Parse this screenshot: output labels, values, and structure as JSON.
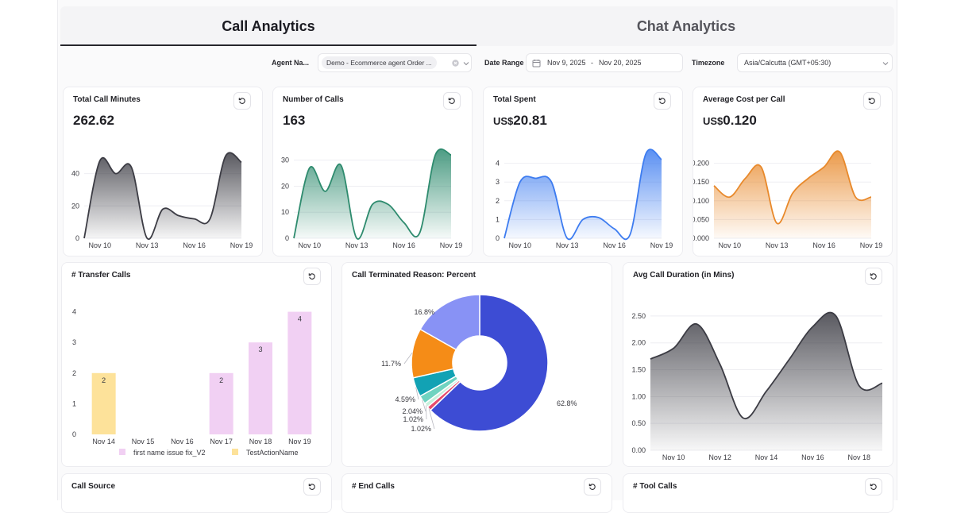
{
  "tabs": [
    {
      "label": "Call Analytics",
      "active": true
    },
    {
      "label": "Chat Analytics",
      "active": false
    }
  ],
  "filters": {
    "agent_label": "Agent Na...",
    "agent_value": "Demo - Ecommerce agent Order ...",
    "date_label": "Date Range",
    "date_start": "Nov 9, 2025",
    "date_sep": "-",
    "date_end": "Nov 20, 2025",
    "timezone_label": "Timezone",
    "timezone_value": "Asia/Calcutta (GMT+05:30)"
  },
  "kpis": [
    {
      "title": "Total Call Minutes",
      "currency": "",
      "value": "262.62",
      "color": "#3c3c44"
    },
    {
      "title": "Number of Calls",
      "currency": "",
      "value": "163",
      "color": "#2e8b6e"
    },
    {
      "title": "Total Spent",
      "currency": "US$",
      "value": "20.81",
      "color": "#3d7cf0"
    },
    {
      "title": "Average Cost per Call",
      "currency": "US$",
      "value": "0.120",
      "color": "#e8892b"
    }
  ],
  "chart_data": [
    {
      "type": "area",
      "title": "Total Call Minutes",
      "x": [
        "Nov 9",
        "Nov 10",
        "Nov 11",
        "Nov 12",
        "Nov 13",
        "Nov 14",
        "Nov 15",
        "Nov 16",
        "Nov 17",
        "Nov 18",
        "Nov 19"
      ],
      "values": [
        0,
        48,
        40,
        44,
        0,
        18,
        14,
        12,
        12,
        51,
        47
      ],
      "xticks": [
        "Nov 10",
        "Nov 13",
        "Nov 16",
        "Nov 19"
      ],
      "yticks": [
        "0",
        "20",
        "40"
      ],
      "ylim": [
        0,
        58
      ]
    },
    {
      "type": "area",
      "title": "Number of Calls",
      "x": [
        "Nov 9",
        "Nov 10",
        "Nov 11",
        "Nov 12",
        "Nov 13",
        "Nov 14",
        "Nov 15",
        "Nov 16",
        "Nov 17",
        "Nov 18",
        "Nov 19"
      ],
      "values": [
        0,
        27,
        18,
        28,
        0,
        13,
        13,
        6,
        2,
        32,
        32
      ],
      "xticks": [
        "Nov 10",
        "Nov 13",
        "Nov 16",
        "Nov 19"
      ],
      "yticks": [
        "0",
        "10",
        "20",
        "30"
      ],
      "ylim": [
        0,
        36
      ]
    },
    {
      "type": "area",
      "title": "Total Spent",
      "x": [
        "Nov 9",
        "Nov 10",
        "Nov 11",
        "Nov 12",
        "Nov 13",
        "Nov 14",
        "Nov 15",
        "Nov 16",
        "Nov 17",
        "Nov 18",
        "Nov 19"
      ],
      "values": [
        0,
        3.0,
        3.2,
        3.0,
        0,
        1,
        1.1,
        0.5,
        0.2,
        4.5,
        4.2
      ],
      "xticks": [
        "Nov 10",
        "Nov 13",
        "Nov 16",
        "Nov 19"
      ],
      "yticks": [
        "0",
        "1",
        "2",
        "3",
        "4"
      ],
      "ylim": [
        0,
        5
      ]
    },
    {
      "type": "area",
      "title": "Average Cost per Call",
      "x": [
        "Nov 9",
        "Nov 10",
        "Nov 11",
        "Nov 12",
        "Nov 13",
        "Nov 14",
        "Nov 15",
        "Nov 16",
        "Nov 17",
        "Nov 18",
        "Nov 19"
      ],
      "values": [
        0.14,
        0.11,
        0.16,
        0.19,
        0.04,
        0.12,
        0.16,
        0.19,
        0.23,
        0.11,
        0.11
      ],
      "xticks": [
        "Nov 10",
        "Nov 13",
        "Nov 16",
        "Nov 19"
      ],
      "yticks": [
        "0.000",
        "0.050",
        "0.100",
        "0.150",
        "0.200"
      ],
      "ylim": [
        0,
        0.25
      ]
    },
    {
      "type": "bar",
      "title": "# Transfer Calls",
      "categories": [
        "Nov 14",
        "Nov 15",
        "Nov 16",
        "Nov 17",
        "Nov 18",
        "Nov 19"
      ],
      "series": [
        {
          "name": "first name issue fix_V2",
          "color": "#f1d0f3",
          "values": [
            0,
            0,
            0,
            2,
            3,
            4
          ]
        },
        {
          "name": "TestActionName",
          "color": "#fde29a",
          "values": [
            2,
            0,
            0,
            0,
            0,
            0
          ]
        }
      ],
      "yticks": [
        "0",
        "1",
        "2",
        "3",
        "4"
      ],
      "ylim": [
        0,
        4.3
      ]
    },
    {
      "type": "pie",
      "title": "Call Terminated Reason: Percent",
      "slices": [
        {
          "value": 62.8,
          "label": "62.8%",
          "color": "#3d4cd4"
        },
        {
          "value": 1.02,
          "label": "1.02%",
          "color": "#e64b6c"
        },
        {
          "value": 1.02,
          "label": "1.02%",
          "color": "#c8f0dc"
        },
        {
          "value": 2.04,
          "label": "2.04%",
          "color": "#6fd3c0"
        },
        {
          "value": 4.59,
          "label": "4.59%",
          "color": "#12a2b4"
        },
        {
          "value": 11.7,
          "label": "11.7%",
          "color": "#f58c17"
        },
        {
          "value": 16.8,
          "label": "16.8%",
          "color": "#8892f5"
        }
      ]
    },
    {
      "type": "area",
      "title": "Avg Call Duration (in Mins)",
      "x": [
        "Nov 9",
        "Nov 10",
        "Nov 11",
        "Nov 12",
        "Nov 13",
        "Nov 14",
        "Nov 15",
        "Nov 16",
        "Nov 17",
        "Nov 18",
        "Nov 19"
      ],
      "values": [
        1.7,
        1.9,
        2.35,
        1.6,
        0.6,
        1.1,
        1.7,
        2.3,
        2.5,
        1.2,
        1.25
      ],
      "xticks": [
        "Nov 10",
        "Nov 12",
        "Nov 14",
        "Nov 16",
        "Nov 18"
      ],
      "yticks": [
        "0.00",
        "0.50",
        "1.00",
        "1.50",
        "2.00",
        "2.50"
      ],
      "ylim": [
        0,
        2.75
      ]
    }
  ],
  "bottom_cards": [
    {
      "title": "Call Source"
    },
    {
      "title": "# End Calls"
    },
    {
      "title": "# Tool Calls"
    }
  ]
}
